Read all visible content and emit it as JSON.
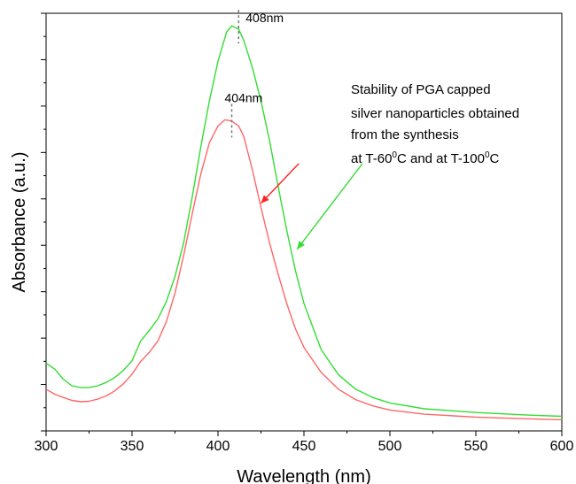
{
  "chart_data": {
    "type": "line",
    "xlabel": "Wavelength (nm)",
    "ylabel": "Absorbance (a.u.)",
    "xlim": [
      300,
      600
    ],
    "x_ticks": [
      300,
      350,
      400,
      450,
      500,
      550,
      600
    ],
    "ylim": [
      0,
      1
    ],
    "y_tick_labels_shown": false,
    "grid": false,
    "legend": "none",
    "series": [
      {
        "color": "#33dd33",
        "x": [
          300,
          305,
          310,
          315,
          320,
          325,
          330,
          335,
          340,
          345,
          350,
          355,
          360,
          365,
          370,
          375,
          380,
          385,
          390,
          395,
          400,
          405,
          408,
          412,
          415,
          420,
          425,
          430,
          435,
          440,
          445,
          450,
          460,
          470,
          480,
          490,
          500,
          520,
          550,
          580,
          600
        ],
        "y": [
          0.162,
          0.148,
          0.124,
          0.108,
          0.104,
          0.104,
          0.108,
          0.116,
          0.128,
          0.145,
          0.168,
          0.215,
          0.24,
          0.268,
          0.31,
          0.37,
          0.45,
          0.56,
          0.68,
          0.79,
          0.885,
          0.955,
          0.97,
          0.962,
          0.935,
          0.87,
          0.79,
          0.695,
          0.585,
          0.48,
          0.385,
          0.305,
          0.195,
          0.135,
          0.1,
          0.08,
          0.067,
          0.053,
          0.044,
          0.038,
          0.035
        ]
      },
      {
        "color": "#ff6666",
        "x": [
          300,
          305,
          310,
          315,
          320,
          325,
          330,
          335,
          340,
          345,
          350,
          355,
          360,
          365,
          370,
          375,
          380,
          385,
          390,
          395,
          400,
          404,
          408,
          412,
          415,
          420,
          425,
          430,
          435,
          440,
          445,
          450,
          460,
          470,
          480,
          490,
          500,
          520,
          550,
          580,
          600
        ],
        "y": [
          0.1,
          0.088,
          0.08,
          0.073,
          0.07,
          0.071,
          0.076,
          0.084,
          0.096,
          0.113,
          0.136,
          0.166,
          0.188,
          0.215,
          0.262,
          0.33,
          0.42,
          0.52,
          0.615,
          0.69,
          0.73,
          0.745,
          0.742,
          0.73,
          0.705,
          0.625,
          0.535,
          0.45,
          0.375,
          0.305,
          0.245,
          0.2,
          0.14,
          0.1,
          0.075,
          0.06,
          0.05,
          0.04,
          0.033,
          0.029,
          0.027
        ]
      }
    ],
    "peak_labels": [
      {
        "text": "408nm",
        "x": 412,
        "y": 0.97
      },
      {
        "text": "404nm",
        "x": 408,
        "y": 0.745
      }
    ],
    "annotation": {
      "lines": [
        "Stability of PGA capped",
        "silver nanoparticles obtained",
        "from the synthesis"
      ],
      "line4": {
        "a": "at T-60",
        "sup1": "0",
        "b": "C and at T-100",
        "sup2": "0",
        "c": "C"
      }
    },
    "arrows": [
      {
        "color": "#ff2222",
        "from": [
          447,
          0.64
        ],
        "to": [
          425,
          0.545
        ]
      },
      {
        "color": "#33dd33",
        "from": [
          484,
          0.64
        ],
        "to": [
          446,
          0.435
        ]
      }
    ]
  }
}
